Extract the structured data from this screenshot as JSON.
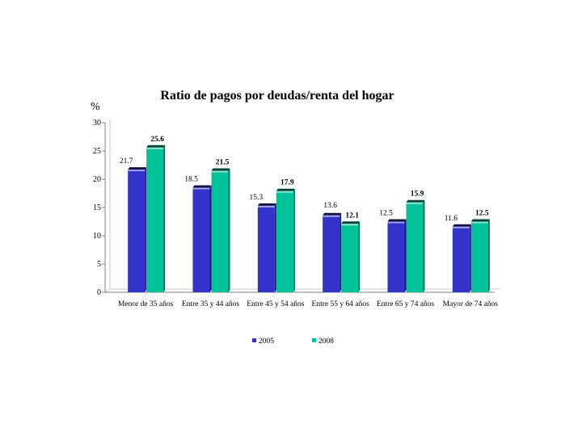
{
  "chart_data": {
    "type": "bar",
    "title": "Ratio de pagos por deudas/renta del hogar",
    "ylabel": "%",
    "xlabel": "",
    "ylim": [
      0,
      30
    ],
    "yticks": [
      0,
      5,
      10,
      15,
      20,
      25,
      30
    ],
    "categories": [
      "Menor de 35 años",
      "Entre 35 y 44 años",
      "Entre 45 y 54 años",
      "Entre 55 y 64 años",
      "Entre 65 y 74 años",
      "Mayor de 74 años"
    ],
    "series": [
      {
        "name": "2005",
        "color": "#3333cc",
        "values": [
          21.7,
          18.5,
          15.3,
          13.6,
          12.5,
          11.6
        ]
      },
      {
        "name": "2008",
        "color": "#00c39a",
        "values": [
          25.6,
          21.5,
          17.9,
          12.1,
          15.9,
          12.5
        ]
      }
    ],
    "data_labels": [
      [
        "21.7",
        "18.5",
        "15.3",
        "13.6",
        "12.5",
        "11.6"
      ],
      [
        "25.6",
        "21.5",
        "17.9",
        "12.1",
        "15.9",
        "12.5"
      ]
    ],
    "grid": false,
    "legend_position": "bottom"
  }
}
